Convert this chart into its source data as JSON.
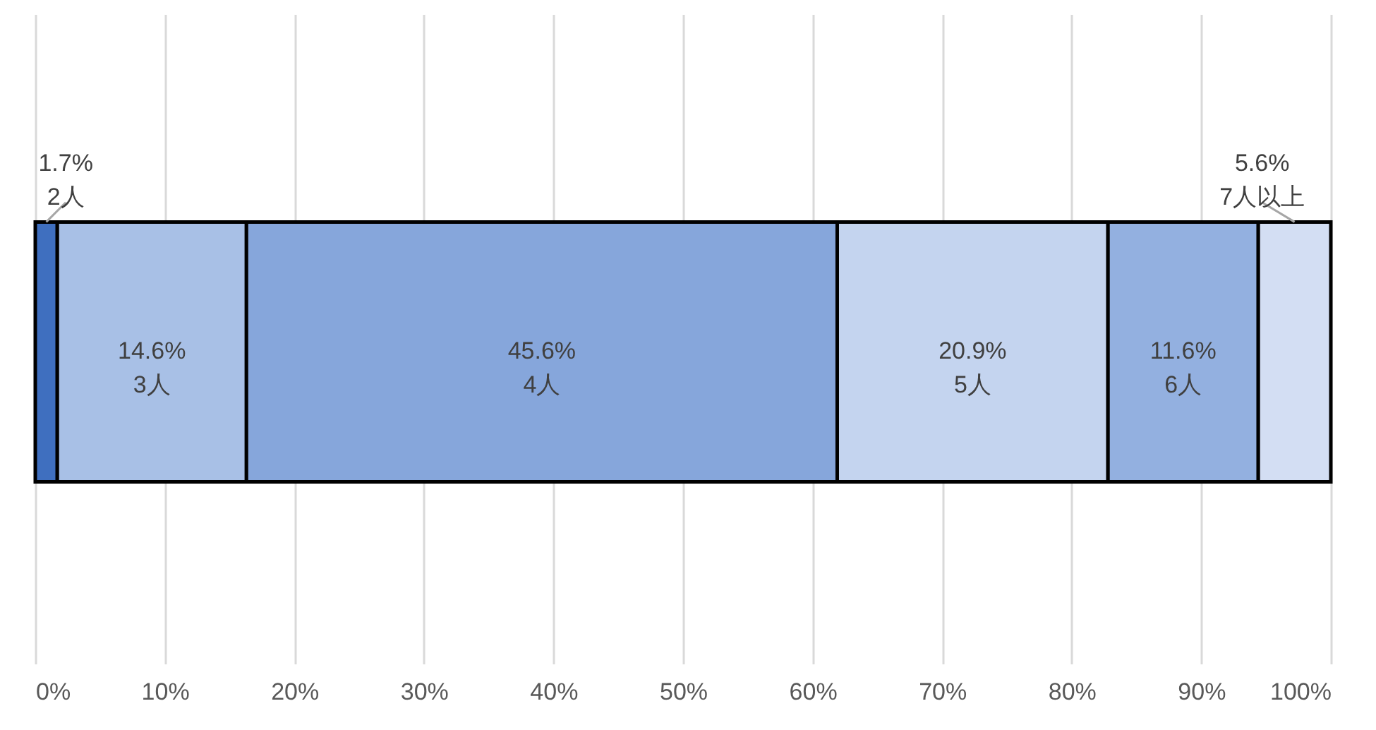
{
  "chart_data": {
    "type": "bar",
    "orientation": "horizontal",
    "stacked": true,
    "categories": [
      null
    ],
    "series": [
      {
        "name": "2人",
        "color": "#3f6fbf",
        "values": [
          1.7
        ],
        "value_labels": [
          "1.7%"
        ]
      },
      {
        "name": "3人",
        "color": "#a8c0e6",
        "values": [
          14.6
        ],
        "value_labels": [
          "14.6%"
        ]
      },
      {
        "name": "4人",
        "color": "#86a6db",
        "values": [
          45.6
        ],
        "value_labels": [
          "45.6%"
        ]
      },
      {
        "name": "5人",
        "color": "#c4d4ef",
        "values": [
          20.9
        ],
        "value_labels": [
          "20.9%"
        ]
      },
      {
        "name": "6人",
        "color": "#93b0e0",
        "values": [
          11.6
        ],
        "value_labels": [
          "11.6%"
        ]
      },
      {
        "name": "7人以上",
        "color": "#d3def3",
        "values": [
          5.6
        ],
        "value_labels": [
          "5.6%"
        ]
      }
    ],
    "xlim": [
      0,
      100
    ],
    "xticks": [
      {
        "value": 0,
        "label": "0%"
      },
      {
        "value": 10,
        "label": "10%"
      },
      {
        "value": 20,
        "label": "20%"
      },
      {
        "value": 30,
        "label": "30%"
      },
      {
        "value": 40,
        "label": "40%"
      },
      {
        "value": 50,
        "label": "50%"
      },
      {
        "value": 60,
        "label": "60%"
      },
      {
        "value": 70,
        "label": "70%"
      },
      {
        "value": 80,
        "label": "80%"
      },
      {
        "value": 90,
        "label": "90%"
      },
      {
        "value": 100,
        "label": "100%"
      }
    ],
    "grid": "x",
    "tick_labels": "x"
  }
}
